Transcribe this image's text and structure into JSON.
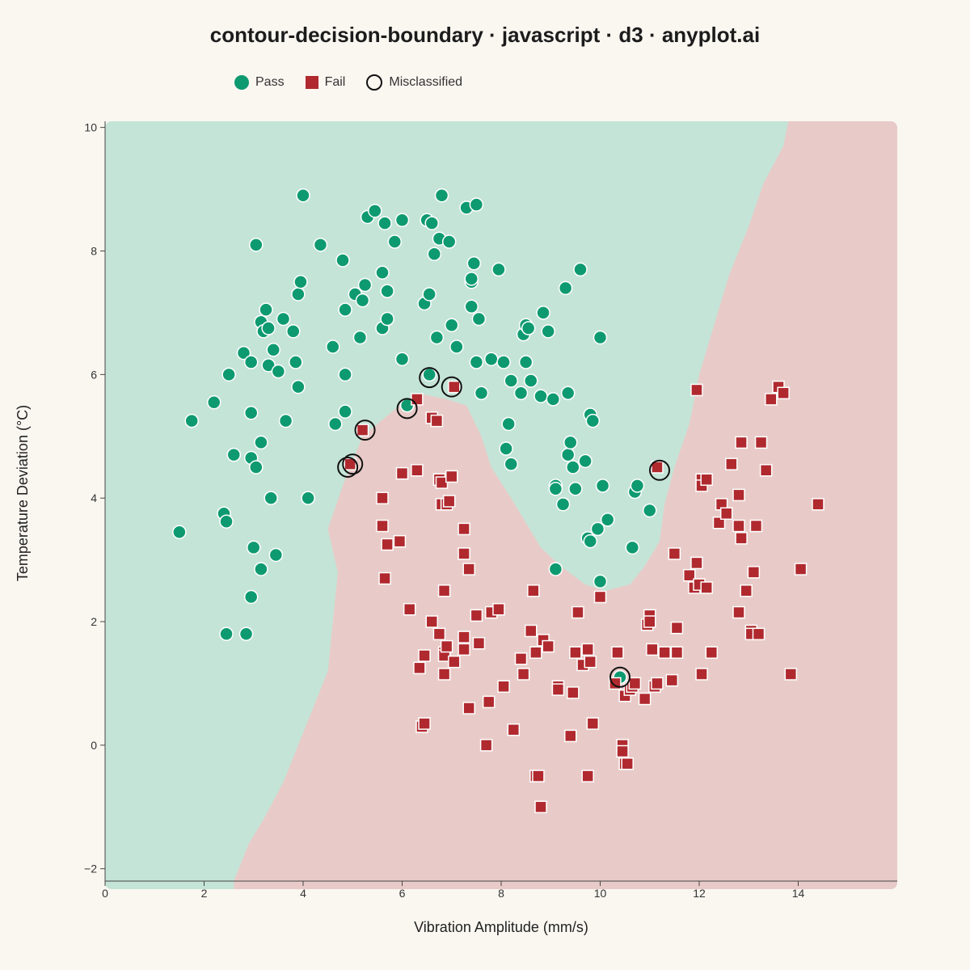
{
  "colors": {
    "background": "#faf7f1",
    "pass": "#0e9a70",
    "fail": "#b0292e",
    "pass_region": "#c4e4d7",
    "fail_region": "#e8cbc8",
    "misclassified_ring": "#111111"
  },
  "chart_data": {
    "type": "scatter",
    "title": "contour-decision-boundary · javascript · d3 · anyplot.ai",
    "xlabel": "Vibration Amplitude (mm/s)",
    "ylabel": "Temperature Deviation (°C)",
    "xlim": [
      0,
      16
    ],
    "ylim": [
      -2.2,
      10.1
    ],
    "x_ticks": [
      0,
      2,
      4,
      6,
      8,
      10,
      12,
      14
    ],
    "x_tick_labels": [
      "0",
      "2",
      "4",
      "6",
      "8",
      "10",
      "12",
      "14"
    ],
    "y_ticks": [
      -2,
      0,
      2,
      4,
      6,
      8,
      10
    ],
    "y_tick_labels": [
      "−2",
      "0",
      "2",
      "4",
      "6",
      "8",
      "10"
    ],
    "legend": [
      {
        "label": "Pass",
        "marker": "circle"
      },
      {
        "label": "Fail",
        "marker": "square"
      },
      {
        "label": "Misclassified",
        "marker": "ring"
      }
    ],
    "legend_position": "top-left",
    "grid": false,
    "decision_boundary": [
      [
        2.6,
        -2.2
      ],
      [
        2.9,
        -1.6
      ],
      [
        3.2,
        -1.2
      ],
      [
        3.6,
        -0.6
      ],
      [
        3.9,
        0.0
      ],
      [
        4.2,
        0.6
      ],
      [
        4.5,
        1.2
      ],
      [
        4.6,
        2.0
      ],
      [
        4.7,
        2.8
      ],
      [
        4.5,
        3.5
      ],
      [
        4.8,
        4.2
      ],
      [
        5.2,
        5.0
      ],
      [
        5.8,
        5.4
      ],
      [
        6.3,
        5.7
      ],
      [
        6.9,
        5.6
      ],
      [
        7.3,
        5.5
      ],
      [
        7.6,
        5.0
      ],
      [
        7.8,
        4.5
      ],
      [
        8.2,
        4.0
      ],
      [
        8.5,
        3.6
      ],
      [
        8.8,
        3.2
      ],
      [
        9.2,
        2.9
      ],
      [
        9.7,
        2.6
      ],
      [
        10.1,
        2.5
      ],
      [
        10.6,
        2.6
      ],
      [
        10.9,
        2.9
      ],
      [
        11.2,
        3.3
      ],
      [
        11.3,
        3.9
      ],
      [
        11.5,
        4.5
      ],
      [
        11.8,
        5.2
      ],
      [
        12.0,
        6.0
      ],
      [
        12.3,
        6.8
      ],
      [
        12.6,
        7.6
      ],
      [
        13.0,
        8.4
      ],
      [
        13.3,
        9.1
      ],
      [
        13.7,
        9.7
      ],
      [
        13.8,
        10.1
      ]
    ],
    "series": [
      {
        "name": "Pass",
        "points": [
          [
            1.5,
            3.45
          ],
          [
            1.75,
            5.25
          ],
          [
            2.2,
            5.55
          ],
          [
            2.4,
            3.75
          ],
          [
            2.45,
            3.62
          ],
          [
            2.45,
            1.8
          ],
          [
            2.5,
            6.0
          ],
          [
            2.6,
            4.7
          ],
          [
            2.8,
            6.35
          ],
          [
            2.85,
            1.8
          ],
          [
            2.95,
            6.2
          ],
          [
            2.95,
            5.38
          ],
          [
            2.95,
            4.65
          ],
          [
            2.95,
            2.4
          ],
          [
            3.0,
            3.2
          ],
          [
            3.05,
            8.1
          ],
          [
            3.05,
            4.5
          ],
          [
            3.15,
            6.85
          ],
          [
            3.15,
            4.9
          ],
          [
            3.15,
            2.85
          ],
          [
            3.2,
            6.7
          ],
          [
            3.25,
            7.05
          ],
          [
            3.3,
            6.75
          ],
          [
            3.3,
            6.15
          ],
          [
            3.35,
            4.0
          ],
          [
            3.4,
            6.4
          ],
          [
            3.45,
            3.08
          ],
          [
            3.5,
            6.05
          ],
          [
            3.6,
            6.9
          ],
          [
            3.65,
            5.25
          ],
          [
            3.8,
            6.7
          ],
          [
            3.85,
            6.2
          ],
          [
            3.9,
            5.8
          ],
          [
            3.9,
            7.3
          ],
          [
            3.95,
            7.5
          ],
          [
            4.0,
            8.9
          ],
          [
            4.1,
            4.0
          ],
          [
            4.35,
            8.1
          ],
          [
            4.6,
            6.45
          ],
          [
            4.65,
            5.2
          ],
          [
            4.8,
            7.85
          ],
          [
            4.85,
            7.05
          ],
          [
            4.85,
            6.0
          ],
          [
            4.85,
            5.4
          ],
          [
            5.05,
            7.3
          ],
          [
            5.15,
            6.6
          ],
          [
            5.2,
            7.2
          ],
          [
            5.25,
            7.45
          ],
          [
            5.3,
            8.55
          ],
          [
            5.45,
            8.65
          ],
          [
            5.6,
            7.65
          ],
          [
            5.6,
            6.75
          ],
          [
            5.65,
            8.45
          ],
          [
            5.7,
            7.35
          ],
          [
            5.7,
            6.9
          ],
          [
            5.85,
            8.15
          ],
          [
            6.0,
            8.5
          ],
          [
            6.0,
            6.25
          ],
          [
            6.1,
            5.5
          ],
          [
            6.45,
            7.15
          ],
          [
            6.5,
            8.5
          ],
          [
            6.55,
            7.3
          ],
          [
            6.55,
            6.0
          ],
          [
            6.6,
            8.45
          ],
          [
            6.65,
            7.95
          ],
          [
            6.7,
            6.6
          ],
          [
            6.75,
            8.2
          ],
          [
            6.8,
            8.9
          ],
          [
            6.95,
            8.15
          ],
          [
            7.0,
            6.8
          ],
          [
            7.1,
            6.45
          ],
          [
            7.3,
            8.7
          ],
          [
            7.4,
            7.5
          ],
          [
            7.4,
            7.55
          ],
          [
            7.4,
            7.1
          ],
          [
            7.45,
            7.8
          ],
          [
            7.5,
            8.75
          ],
          [
            7.5,
            6.2
          ],
          [
            7.55,
            6.9
          ],
          [
            7.6,
            5.7
          ],
          [
            7.8,
            6.25
          ],
          [
            7.95,
            7.7
          ],
          [
            8.05,
            6.2
          ],
          [
            8.1,
            4.8
          ],
          [
            8.15,
            5.2
          ],
          [
            8.2,
            4.55
          ],
          [
            8.2,
            5.9
          ],
          [
            8.4,
            5.7
          ],
          [
            8.45,
            6.65
          ],
          [
            8.5,
            6.2
          ],
          [
            8.5,
            6.8
          ],
          [
            8.55,
            6.75
          ],
          [
            8.6,
            5.9
          ],
          [
            8.8,
            5.65
          ],
          [
            8.85,
            7.0
          ],
          [
            8.95,
            6.7
          ],
          [
            9.05,
            5.6
          ],
          [
            9.1,
            4.2
          ],
          [
            9.1,
            4.15
          ],
          [
            9.1,
            2.85
          ],
          [
            9.25,
            3.9
          ],
          [
            9.3,
            7.4
          ],
          [
            9.35,
            4.7
          ],
          [
            9.35,
            5.7
          ],
          [
            9.4,
            4.9
          ],
          [
            9.45,
            4.5
          ],
          [
            9.5,
            4.15
          ],
          [
            9.6,
            7.7
          ],
          [
            9.7,
            4.6
          ],
          [
            9.75,
            3.35
          ],
          [
            9.8,
            5.35
          ],
          [
            9.8,
            3.3
          ],
          [
            9.85,
            5.25
          ],
          [
            9.95,
            3.5
          ],
          [
            10.0,
            6.6
          ],
          [
            10.0,
            2.65
          ],
          [
            10.05,
            4.2
          ],
          [
            10.15,
            3.65
          ],
          [
            10.4,
            1.1
          ],
          [
            10.65,
            3.2
          ],
          [
            10.7,
            4.1
          ],
          [
            10.75,
            4.2
          ],
          [
            11.0,
            3.8
          ]
        ]
      },
      {
        "name": "Fail",
        "points": [
          [
            4.95,
            4.55
          ],
          [
            5.2,
            5.1
          ],
          [
            5.6,
            3.55
          ],
          [
            5.6,
            4.0
          ],
          [
            5.65,
            2.7
          ],
          [
            5.7,
            3.25
          ],
          [
            5.95,
            3.3
          ],
          [
            6.0,
            4.4
          ],
          [
            6.15,
            2.2
          ],
          [
            6.3,
            4.45
          ],
          [
            6.3,
            5.6
          ],
          [
            6.35,
            1.25
          ],
          [
            6.4,
            0.3
          ],
          [
            6.45,
            0.35
          ],
          [
            6.45,
            1.45
          ],
          [
            6.6,
            2.0
          ],
          [
            6.6,
            5.3
          ],
          [
            6.7,
            5.25
          ],
          [
            6.75,
            1.8
          ],
          [
            6.75,
            4.3
          ],
          [
            6.8,
            3.9
          ],
          [
            6.8,
            4.25
          ],
          [
            6.85,
            1.15
          ],
          [
            6.85,
            2.5
          ],
          [
            6.85,
            1.5
          ],
          [
            6.85,
            1.45
          ],
          [
            6.9,
            1.6
          ],
          [
            6.9,
            3.9
          ],
          [
            6.95,
            3.95
          ],
          [
            7.0,
            4.35
          ],
          [
            7.05,
            1.35
          ],
          [
            7.05,
            5.8
          ],
          [
            7.25,
            3.1
          ],
          [
            7.25,
            3.5
          ],
          [
            7.25,
            1.55
          ],
          [
            7.25,
            1.75
          ],
          [
            7.35,
            2.85
          ],
          [
            7.35,
            0.6
          ],
          [
            7.5,
            2.1
          ],
          [
            7.55,
            1.65
          ],
          [
            7.7,
            0.0
          ],
          [
            7.75,
            0.7
          ],
          [
            7.8,
            2.15
          ],
          [
            7.95,
            2.2
          ],
          [
            8.05,
            0.95
          ],
          [
            8.25,
            0.25
          ],
          [
            8.4,
            1.4
          ],
          [
            8.45,
            1.15
          ],
          [
            8.6,
            1.85
          ],
          [
            8.65,
            2.5
          ],
          [
            8.7,
            -0.5
          ],
          [
            8.7,
            1.5
          ],
          [
            8.75,
            -0.5
          ],
          [
            8.8,
            -1.0
          ],
          [
            8.85,
            1.7
          ],
          [
            8.95,
            1.6
          ],
          [
            9.15,
            0.95
          ],
          [
            9.15,
            0.9
          ],
          [
            9.4,
            0.15
          ],
          [
            9.45,
            0.85
          ],
          [
            9.5,
            1.5
          ],
          [
            9.55,
            2.15
          ],
          [
            9.65,
            1.3
          ],
          [
            9.75,
            1.55
          ],
          [
            9.75,
            -0.5
          ],
          [
            9.8,
            1.35
          ],
          [
            9.85,
            0.35
          ],
          [
            10.0,
            2.4
          ],
          [
            10.3,
            1.0
          ],
          [
            10.35,
            1.5
          ],
          [
            10.45,
            0.0
          ],
          [
            10.45,
            -0.1
          ],
          [
            10.5,
            0.8
          ],
          [
            10.5,
            -0.3
          ],
          [
            10.55,
            -0.3
          ],
          [
            10.6,
            0.9
          ],
          [
            10.65,
            0.95
          ],
          [
            10.7,
            1.0
          ],
          [
            10.9,
            0.75
          ],
          [
            10.95,
            1.95
          ],
          [
            11.0,
            2.1
          ],
          [
            11.0,
            2.0
          ],
          [
            11.05,
            1.55
          ],
          [
            11.1,
            0.95
          ],
          [
            11.15,
            1.0
          ],
          [
            11.15,
            4.5
          ],
          [
            11.3,
            1.5
          ],
          [
            11.45,
            1.05
          ],
          [
            11.5,
            3.1
          ],
          [
            11.55,
            1.9
          ],
          [
            11.55,
            1.5
          ],
          [
            11.8,
            2.75
          ],
          [
            11.9,
            2.55
          ],
          [
            11.95,
            2.95
          ],
          [
            11.95,
            5.75
          ],
          [
            12.0,
            2.6
          ],
          [
            12.05,
            1.15
          ],
          [
            12.05,
            4.3
          ],
          [
            12.05,
            4.2
          ],
          [
            12.15,
            4.3
          ],
          [
            12.15,
            2.55
          ],
          [
            12.25,
            1.5
          ],
          [
            12.4,
            3.6
          ],
          [
            12.45,
            3.9
          ],
          [
            12.55,
            3.75
          ],
          [
            12.65,
            4.55
          ],
          [
            12.8,
            4.05
          ],
          [
            12.8,
            3.55
          ],
          [
            12.8,
            2.15
          ],
          [
            12.85,
            3.35
          ],
          [
            12.85,
            4.9
          ],
          [
            12.95,
            2.5
          ],
          [
            13.05,
            1.85
          ],
          [
            13.05,
            1.8
          ],
          [
            13.1,
            2.8
          ],
          [
            13.15,
            3.55
          ],
          [
            13.2,
            1.8
          ],
          [
            13.25,
            4.9
          ],
          [
            13.35,
            4.45
          ],
          [
            13.45,
            5.6
          ],
          [
            13.6,
            5.8
          ],
          [
            13.7,
            5.7
          ],
          [
            13.85,
            1.15
          ],
          [
            14.05,
            2.85
          ],
          [
            14.4,
            3.9
          ]
        ]
      }
    ],
    "misclassified": [
      [
        4.9,
        4.5
      ],
      [
        5.0,
        4.55
      ],
      [
        5.25,
        5.1
      ],
      [
        6.1,
        5.45
      ],
      [
        6.55,
        5.95
      ],
      [
        7.0,
        5.8
      ],
      [
        10.4,
        1.1
      ],
      [
        11.2,
        4.45
      ]
    ]
  }
}
